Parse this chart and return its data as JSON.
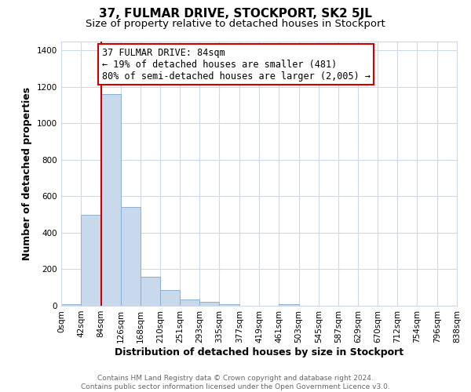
{
  "title": "37, FULMAR DRIVE, STOCKPORT, SK2 5JL",
  "subtitle": "Size of property relative to detached houses in Stockport",
  "xlabel": "Distribution of detached houses by size in Stockport",
  "ylabel": "Number of detached properties",
  "bar_edges": [
    0,
    42,
    84,
    126,
    168,
    210,
    251,
    293,
    335,
    377,
    419,
    461,
    503,
    545,
    587,
    629,
    670,
    712,
    754,
    796,
    838
  ],
  "bar_heights": [
    10,
    500,
    1160,
    540,
    160,
    85,
    35,
    20,
    10,
    0,
    0,
    10,
    0,
    0,
    0,
    0,
    0,
    0,
    0,
    0
  ],
  "bar_color": "#c9d9ec",
  "bar_edgecolor": "#8ab0d0",
  "vline_x": 84,
  "vline_color": "#cc0000",
  "annotation_title": "37 FULMAR DRIVE: 84sqm",
  "annotation_line1": "← 19% of detached houses are smaller (481)",
  "annotation_line2": "80% of semi-detached houses are larger (2,005) →",
  "annotation_box_edgecolor": "#cc0000",
  "ylim": [
    0,
    1450
  ],
  "yticks": [
    0,
    200,
    400,
    600,
    800,
    1000,
    1200,
    1400
  ],
  "xtick_labels": [
    "0sqm",
    "42sqm",
    "84sqm",
    "126sqm",
    "168sqm",
    "210sqm",
    "251sqm",
    "293sqm",
    "335sqm",
    "377sqm",
    "419sqm",
    "461sqm",
    "503sqm",
    "545sqm",
    "587sqm",
    "629sqm",
    "670sqm",
    "712sqm",
    "754sqm",
    "796sqm",
    "838sqm"
  ],
  "footer_line1": "Contains HM Land Registry data © Crown copyright and database right 2024.",
  "footer_line2": "Contains public sector information licensed under the Open Government Licence v3.0.",
  "bg_color": "#ffffff",
  "grid_color": "#d0d8e8",
  "title_fontsize": 11,
  "subtitle_fontsize": 9.5,
  "axis_label_fontsize": 9,
  "tick_fontsize": 7.5,
  "annotation_fontsize": 8.5,
  "footer_fontsize": 6.5
}
